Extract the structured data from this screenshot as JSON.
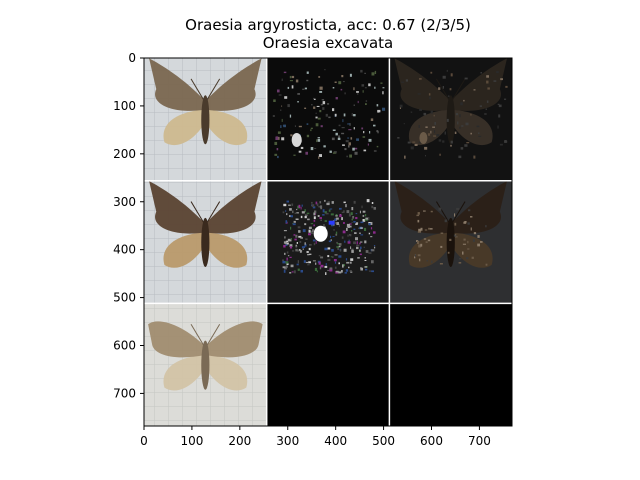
{
  "figure": {
    "title_line1": "Oraesia argyrosticta, acc: 0.67 (2/3/5)",
    "title_line2": "Oraesia excavata",
    "x_ticks": [
      "0",
      "100",
      "200",
      "300",
      "400",
      "500",
      "600",
      "700"
    ],
    "y_ticks": [
      "0",
      "100",
      "200",
      "300",
      "400",
      "500",
      "600",
      "700"
    ]
  },
  "grid": {
    "rows": 3,
    "cols": 3,
    "cells": [
      {
        "row": 0,
        "col": 0,
        "kind": "photo",
        "name": "moth-photo-1"
      },
      {
        "row": 0,
        "col": 1,
        "kind": "saliency-sparse",
        "name": "saliency-map-1a"
      },
      {
        "row": 0,
        "col": 2,
        "kind": "masked-dark",
        "name": "masked-moth-1b"
      },
      {
        "row": 1,
        "col": 0,
        "kind": "photo-dark",
        "name": "moth-photo-2"
      },
      {
        "row": 1,
        "col": 1,
        "kind": "saliency-dense",
        "name": "saliency-map-2a"
      },
      {
        "row": 1,
        "col": 2,
        "kind": "masked-moth",
        "name": "masked-moth-2b"
      },
      {
        "row": 2,
        "col": 0,
        "kind": "photo-light",
        "name": "moth-photo-3"
      },
      {
        "row": 2,
        "col": 1,
        "kind": "black",
        "name": "empty-panel-3a"
      },
      {
        "row": 2,
        "col": 2,
        "kind": "black",
        "name": "empty-panel-3b"
      }
    ]
  },
  "colors": {
    "background": "#ffffff",
    "photo_bg": "#cfd3d6",
    "grid_line": "#b9bec4",
    "moth_brown": "#6b5a45",
    "moth_light": "#c9b48f",
    "dark_panel": "#121212",
    "black_panel": "#000000",
    "separator": "#ffffff"
  }
}
